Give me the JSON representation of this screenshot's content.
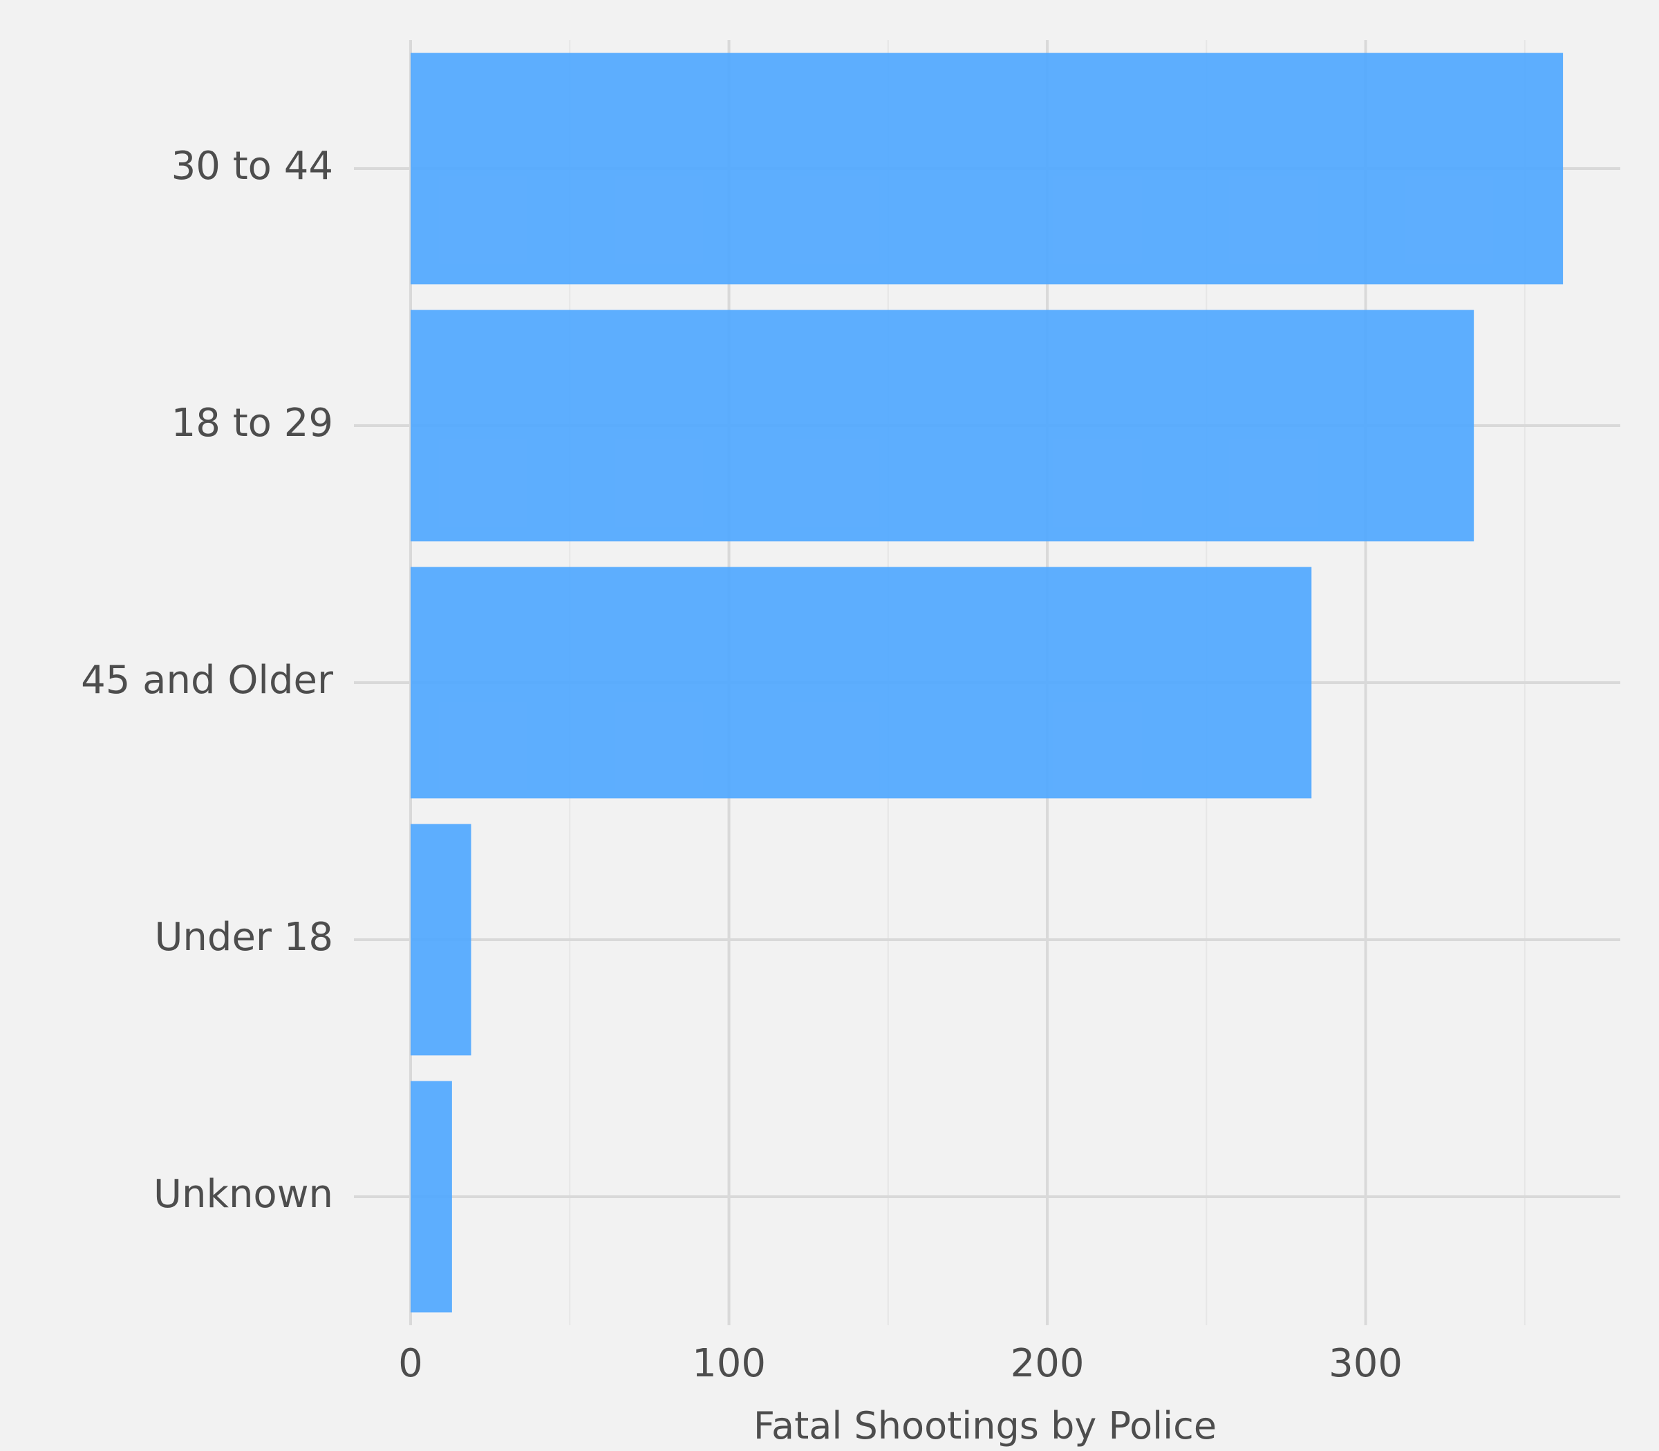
{
  "chart_data": {
    "type": "bar",
    "orientation": "horizontal",
    "categories": [
      "30 to 44",
      "18 to 29",
      "45 and Older",
      "Under 18",
      "Unknown"
    ],
    "values": [
      362,
      334,
      283,
      19,
      13
    ],
    "title": "",
    "xlabel": "Fatal Shootings by Police",
    "ylabel": "",
    "xlim": [
      0,
      380
    ],
    "xticks": [
      "0",
      "100",
      "200",
      "300"
    ],
    "xtick_values": [
      0,
      100,
      200,
      300
    ],
    "minor_xtick_values": [
      50,
      150,
      250,
      350
    ],
    "grid": true,
    "bar_color": "#4da6ff",
    "background": "#f2f2f2",
    "grid_color": "#d9d9d9"
  }
}
